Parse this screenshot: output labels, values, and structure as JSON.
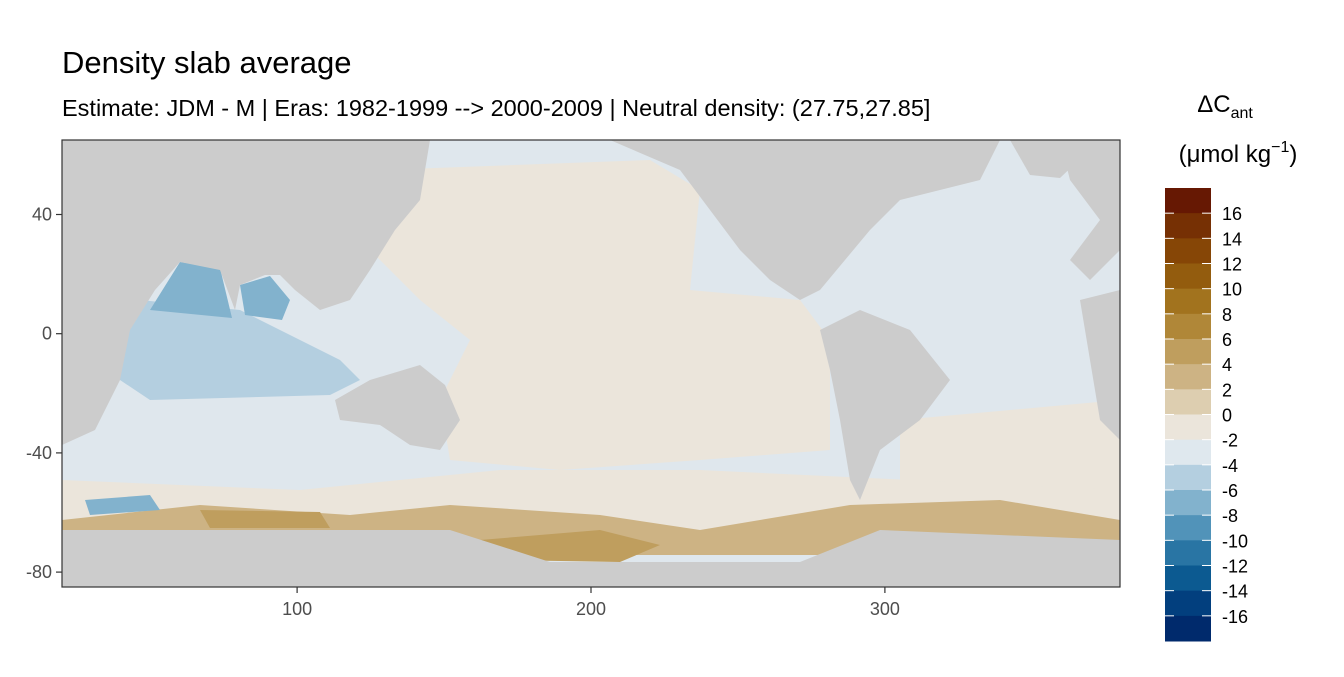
{
  "chart_data": {
    "type": "map",
    "title": "Density slab average",
    "subtitle": "Estimate: JDM - M | Eras: 1982-1999 --> 2000-2009 | Neutral density: (27.75,27.85]",
    "xlim": [
      20,
      380
    ],
    "ylim": [
      -85,
      65
    ],
    "xticks": [
      100,
      200,
      300
    ],
    "yticks": [
      40,
      0,
      -40,
      -80
    ],
    "legend": {
      "title": "ΔC",
      "title_subscript": "ant",
      "unit": "(μmol kg",
      "unit_superscript": "−1",
      "unit_close": ")",
      "breaks": [
        16,
        14,
        12,
        10,
        8,
        6,
        4,
        2,
        0,
        -2,
        -4,
        -6,
        -8,
        -10,
        -12,
        -14,
        -16
      ],
      "colors": [
        "#661803",
        "#763004",
        "#864606",
        "#935c0e",
        "#a2731e",
        "#b08738",
        "#bf9e5e",
        "#cdb384",
        "#ddceb0",
        "#ebe5db",
        "#dfe8ee",
        "#b4cfe0",
        "#82b2cd",
        "#5193b9",
        "#2975a4",
        "#0c5a91",
        "#023f7e",
        "#002a6c"
      ]
    }
  }
}
